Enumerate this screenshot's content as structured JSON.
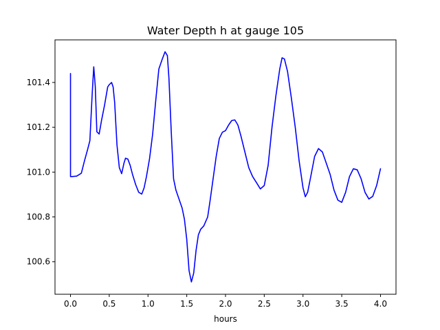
{
  "chart_data": {
    "type": "line",
    "title": "Water Depth h at gauge 105",
    "xlabel": "hours",
    "ylabel": "",
    "xlim": [
      -0.2,
      4.2
    ],
    "ylim": [
      100.455,
      101.59
    ],
    "xticks": [
      0.0,
      0.5,
      1.0,
      1.5,
      2.0,
      2.5,
      3.0,
      3.5,
      4.0
    ],
    "xtick_labels": [
      "0.0",
      "0.5",
      "1.0",
      "1.5",
      "2.0",
      "2.5",
      "3.0",
      "3.5",
      "4.0"
    ],
    "yticks": [
      100.6,
      100.8,
      101.0,
      101.2,
      101.4
    ],
    "ytick_labels": [
      "100.6",
      "100.8",
      "101.0",
      "101.2",
      "101.4"
    ],
    "grid": false,
    "series": [
      {
        "color": "#0000ff",
        "x": [
          0.0,
          0.0,
          0.02,
          0.08,
          0.14,
          0.18,
          0.22,
          0.25,
          0.28,
          0.3,
          0.32,
          0.34,
          0.37,
          0.4,
          0.44,
          0.48,
          0.5,
          0.53,
          0.55,
          0.57,
          0.6,
          0.63,
          0.66,
          0.69,
          0.71,
          0.74,
          0.77,
          0.8,
          0.84,
          0.88,
          0.92,
          0.95,
          0.98,
          1.02,
          1.06,
          1.1,
          1.14,
          1.18,
          1.22,
          1.25,
          1.27,
          1.3,
          1.33,
          1.36,
          1.4,
          1.44,
          1.47,
          1.5,
          1.53,
          1.56,
          1.59,
          1.62,
          1.65,
          1.68,
          1.72,
          1.77,
          1.8,
          1.84,
          1.88,
          1.92,
          1.96,
          2.0,
          2.04,
          2.08,
          2.12,
          2.16,
          2.2,
          2.25,
          2.3,
          2.35,
          2.4,
          2.45,
          2.5,
          2.55,
          2.6,
          2.65,
          2.7,
          2.73,
          2.76,
          2.8,
          2.85,
          2.9,
          2.95,
          3.0,
          3.03,
          3.06,
          3.1,
          3.15,
          3.2,
          3.25,
          3.3,
          3.35,
          3.4,
          3.45,
          3.5,
          3.55,
          3.6,
          3.65,
          3.7,
          3.75,
          3.8,
          3.85,
          3.9,
          3.95,
          4.0
        ],
        "y": [
          101.44,
          100.98,
          100.98,
          100.982,
          100.995,
          101.05,
          101.1,
          101.14,
          101.35,
          101.47,
          101.38,
          101.18,
          101.17,
          101.23,
          101.3,
          101.38,
          101.39,
          101.4,
          101.38,
          101.31,
          101.12,
          101.02,
          100.993,
          101.04,
          101.062,
          101.058,
          101.03,
          100.99,
          100.945,
          100.91,
          100.902,
          100.93,
          100.98,
          101.06,
          101.17,
          101.32,
          101.46,
          101.5,
          101.537,
          101.52,
          101.42,
          101.18,
          100.97,
          100.92,
          100.88,
          100.84,
          100.79,
          100.7,
          100.56,
          100.51,
          100.55,
          100.65,
          100.72,
          100.745,
          100.76,
          100.8,
          100.87,
          100.97,
          101.07,
          101.15,
          101.178,
          101.185,
          101.21,
          101.23,
          101.233,
          101.21,
          101.16,
          101.09,
          101.02,
          100.98,
          100.953,
          100.925,
          100.94,
          101.03,
          101.2,
          101.34,
          101.46,
          101.51,
          101.505,
          101.45,
          101.33,
          101.2,
          101.05,
          100.93,
          100.89,
          100.91,
          100.98,
          101.07,
          101.105,
          101.09,
          101.04,
          100.99,
          100.92,
          100.875,
          100.865,
          100.91,
          100.98,
          101.015,
          101.01,
          100.97,
          100.91,
          100.88,
          100.892,
          100.94,
          101.015
        ]
      }
    ]
  }
}
